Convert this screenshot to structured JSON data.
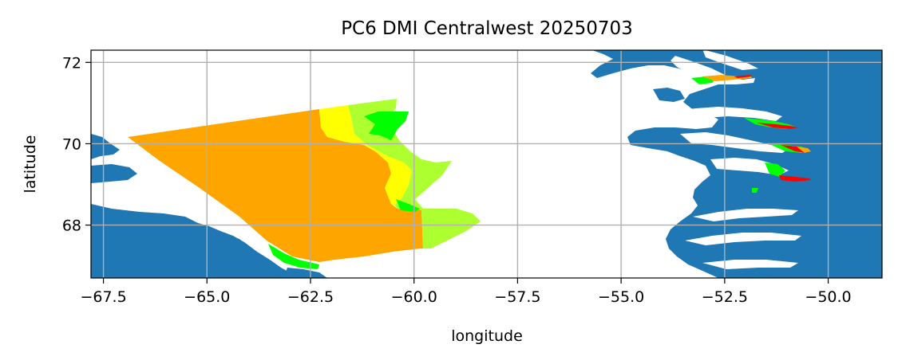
{
  "title": "PC6 DMI Centralwest 20250703",
  "chart_data": {
    "type": "map",
    "title": "PC6 DMI Centralwest 20250703",
    "xlabel": "longitude",
    "ylabel": "latitude",
    "xlim": [
      -67.8,
      -48.7
    ],
    "ylim": [
      66.7,
      72.3
    ],
    "grid": true,
    "x_ticks": [
      {
        "value": -67.5,
        "label": "−67.5"
      },
      {
        "value": -65.0,
        "label": "−65.0"
      },
      {
        "value": -62.5,
        "label": "−62.5"
      },
      {
        "value": -60.0,
        "label": "−60.0"
      },
      {
        "value": -57.5,
        "label": "−57.5"
      },
      {
        "value": -55.0,
        "label": "−55.0"
      },
      {
        "value": -52.5,
        "label": "−52.5"
      },
      {
        "value": -50.0,
        "label": "−50.0"
      }
    ],
    "y_ticks": [
      {
        "value": 68,
        "label": "68"
      },
      {
        "value": 70,
        "label": "70"
      },
      {
        "value": 72,
        "label": "72"
      }
    ],
    "colors": {
      "land": "#1f77b4",
      "orange": "#ffa500",
      "yellow": "#ffff00",
      "greenyellow": "#adff2f",
      "lime": "#00ff00",
      "red": "#ff0000",
      "grid": "#b0b0b0"
    }
  }
}
